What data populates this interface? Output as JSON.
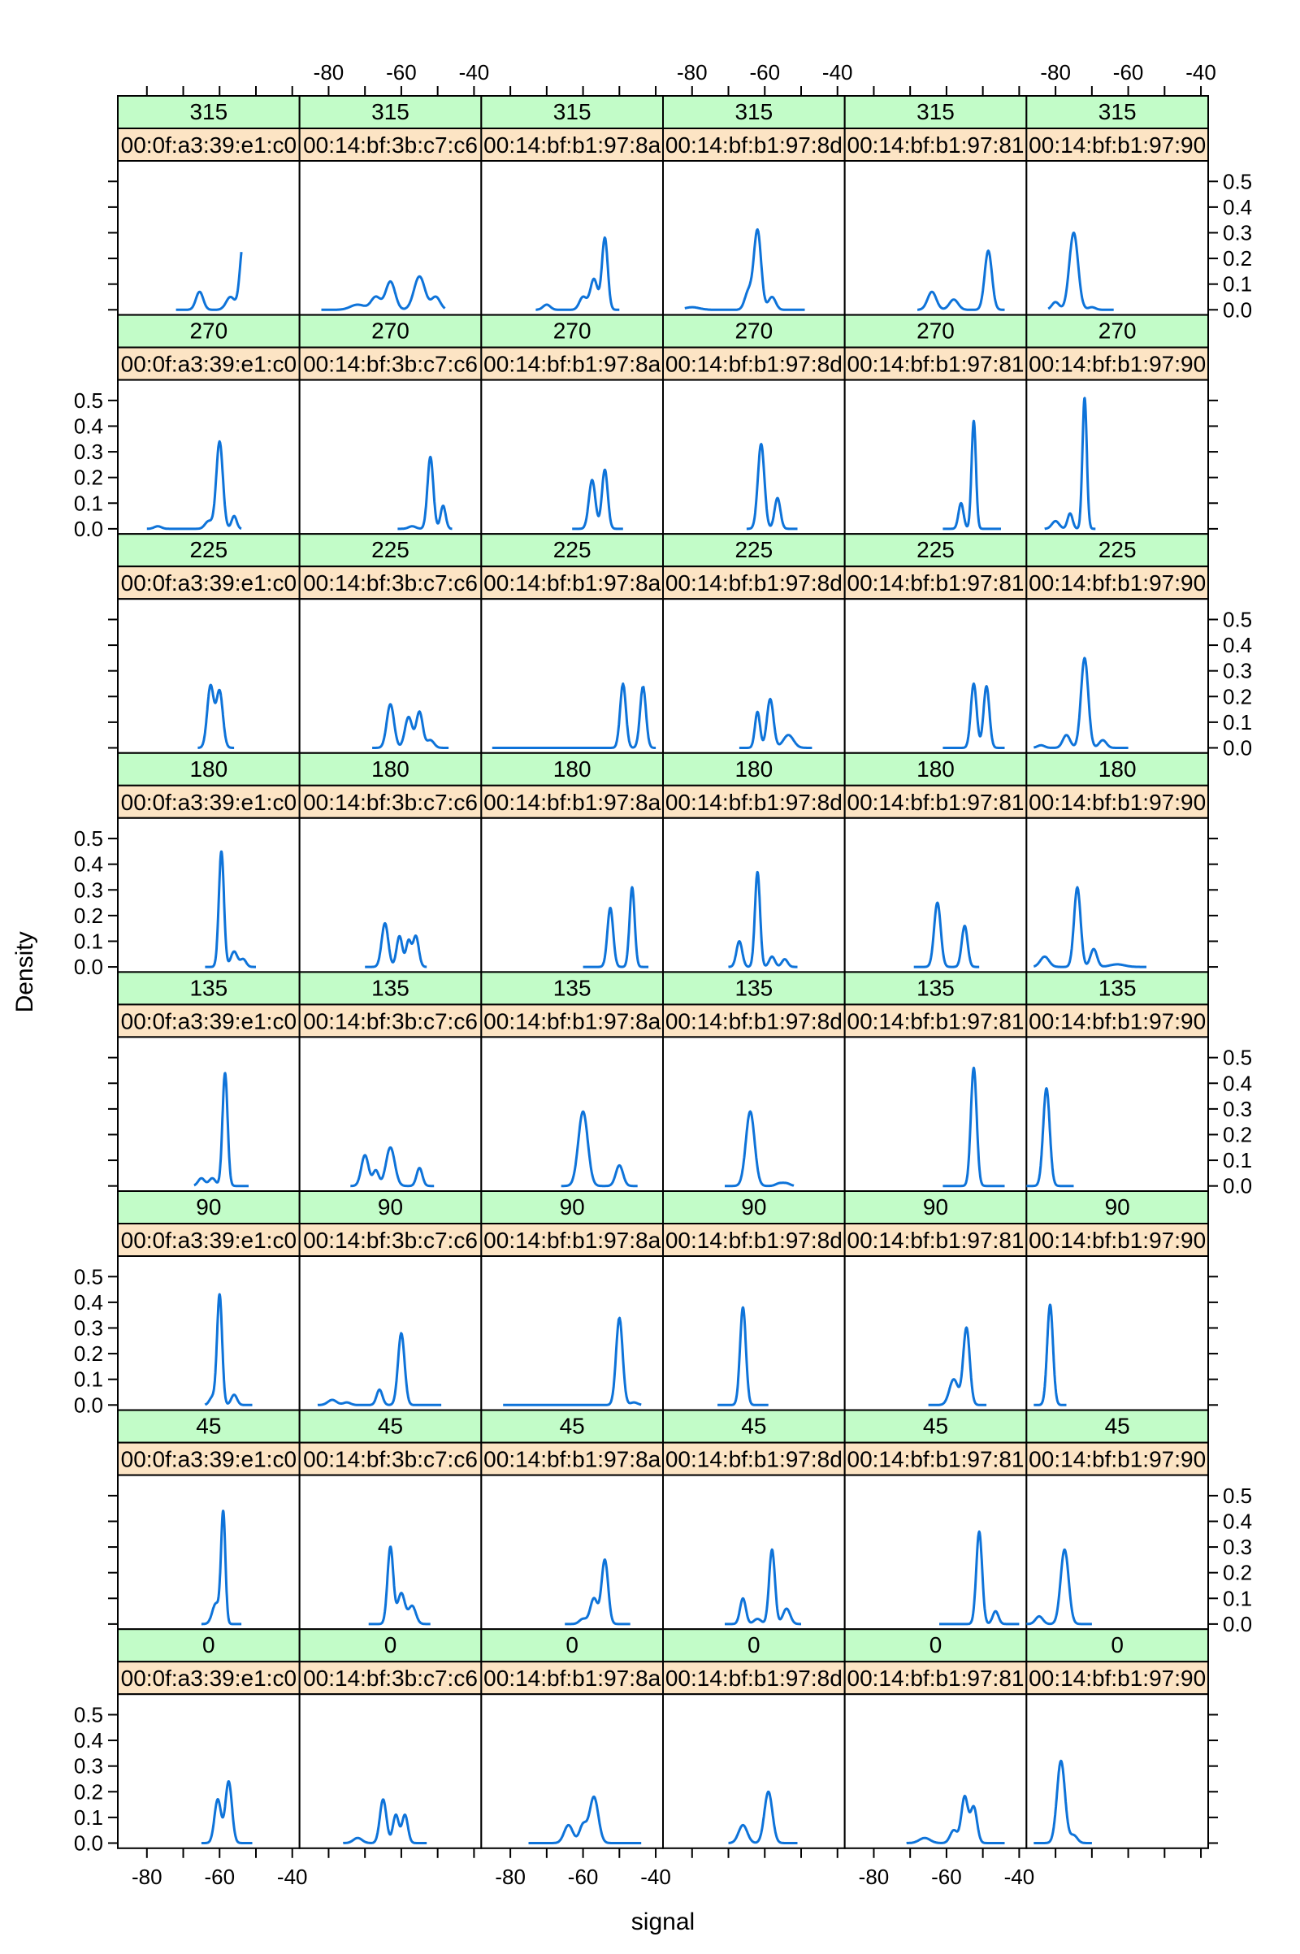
{
  "chart_data": {
    "type": "line",
    "xlabel": "signal",
    "ylabel": "Density",
    "xlim": [
      -88,
      -38
    ],
    "ylim": [
      -0.02,
      0.58
    ],
    "x_ticks": [
      -80,
      -60,
      -40
    ],
    "y_ticks": [
      0.0,
      0.1,
      0.2,
      0.3,
      0.4,
      0.5
    ],
    "y_tick_labels": [
      "0.0",
      "0.1",
      "0.2",
      "0.3",
      "0.4",
      "0.5"
    ],
    "grid": false,
    "colors": {
      "line": "#0e73d9",
      "strip_angle": "#c2fcc8",
      "strip_mac": "#fce4c4",
      "frame": "#000000"
    },
    "angles": [
      "315",
      "270",
      "225",
      "180",
      "135",
      "90",
      "45",
      "0"
    ],
    "macs": [
      "00:0f:a3:39:e1:c0",
      "00:14:bf:3b:c7:c6",
      "00:14:bf:b1:97:8a",
      "00:14:bf:b1:97:8d",
      "00:14:bf:b1:97:81",
      "00:14:bf:b1:97:90"
    ],
    "panels": [
      [
        {
          "from": -72,
          "to": -54,
          "peaks": [
            [
              -65.5,
              0.07,
              1.0
            ],
            [
              -57,
              0.05,
              1.2
            ],
            [
              -53.5,
              0.26,
              0.9
            ]
          ]
        },
        {
          "from": -82,
          "to": -48,
          "peaks": [
            [
              -72,
              0.02,
              2.0
            ],
            [
              -63,
              0.11,
              1.3
            ],
            [
              -55,
              0.13,
              1.5
            ],
            [
              -50.5,
              0.05,
              1.2
            ],
            [
              -67,
              0.05,
              1.3
            ]
          ]
        },
        {
          "from": -73,
          "to": -50,
          "peaks": [
            [
              -70,
              0.02,
              1.0
            ],
            [
              -57,
              0.12,
              1.0
            ],
            [
              -54,
              0.28,
              0.8
            ],
            [
              -60,
              0.05,
              1.0
            ]
          ]
        },
        {
          "from": -82,
          "to": -49,
          "peaks": [
            [
              -80,
              0.01,
              2.0
            ],
            [
              -62,
              0.31,
              1.0
            ],
            [
              -58,
              0.05,
              1.0
            ],
            [
              -64.5,
              0.07,
              1.0
            ]
          ]
        },
        {
          "from": -68,
          "to": -44,
          "peaks": [
            [
              -64,
              0.07,
              1.2
            ],
            [
              -58,
              0.04,
              1.2
            ],
            [
              -48.5,
              0.23,
              1.0
            ]
          ]
        },
        {
          "from": -82,
          "to": -64,
          "peaks": [
            [
              -80,
              0.03,
              1.0
            ],
            [
              -75,
              0.3,
              1.2
            ],
            [
              -70,
              0.01,
              1.0
            ]
          ]
        }
      ],
      [
        {
          "from": -80,
          "to": -54,
          "peaks": [
            [
              -77,
              0.01,
              1.0
            ],
            [
              -60,
              0.34,
              0.9
            ],
            [
              -56,
              0.05,
              0.7
            ],
            [
              -63,
              0.03,
              1.0
            ]
          ]
        },
        {
          "from": -61,
          "to": -46,
          "peaks": [
            [
              -57,
              0.01,
              1.0
            ],
            [
              -52,
              0.28,
              0.8
            ],
            [
              -48.5,
              0.09,
              0.7
            ]
          ]
        },
        {
          "from": -63,
          "to": -49,
          "peaks": [
            [
              -57.5,
              0.19,
              0.9
            ],
            [
              -54,
              0.23,
              0.8
            ]
          ]
        },
        {
          "from": -65,
          "to": -51,
          "peaks": [
            [
              -61,
              0.33,
              0.9
            ],
            [
              -56.5,
              0.12,
              0.8
            ]
          ]
        },
        {
          "from": -61,
          "to": -45,
          "peaks": [
            [
              -56,
              0.1,
              0.7
            ],
            [
              -52.5,
              0.42,
              0.6
            ]
          ]
        },
        {
          "from": -83,
          "to": -69,
          "peaks": [
            [
              -80,
              0.03,
              1.0
            ],
            [
              -76,
              0.06,
              0.7
            ],
            [
              -72,
              0.51,
              0.6
            ]
          ]
        }
      ],
      [
        {
          "from": -66,
          "to": -56,
          "peaks": [
            [
              -62.5,
              0.24,
              0.9
            ],
            [
              -60,
              0.22,
              0.9
            ]
          ]
        },
        {
          "from": -68,
          "to": -47,
          "peaks": [
            [
              -63,
              0.17,
              1.0
            ],
            [
              -58,
              0.12,
              1.0
            ],
            [
              -55,
              0.14,
              0.9
            ],
            [
              -52,
              0.03,
              1.0
            ]
          ]
        },
        {
          "from": -85,
          "to": -40,
          "peaks": [
            [
              -49,
              0.25,
              0.8
            ],
            [
              -43.5,
              0.24,
              0.8
            ]
          ]
        },
        {
          "from": -67,
          "to": -47,
          "peaks": [
            [
              -62,
              0.14,
              0.7
            ],
            [
              -58.5,
              0.19,
              0.9
            ],
            [
              -53.5,
              0.05,
              1.4
            ]
          ]
        },
        {
          "from": -61,
          "to": -44,
          "peaks": [
            [
              -52.5,
              0.25,
              0.8
            ],
            [
              -49,
              0.24,
              0.8
            ]
          ]
        },
        {
          "from": -86,
          "to": -60,
          "peaks": [
            [
              -84,
              0.01,
              1.0
            ],
            [
              -72,
              0.35,
              1.0
            ],
            [
              -77,
              0.05,
              1.0
            ],
            [
              -67,
              0.03,
              1.0
            ]
          ]
        }
      ],
      [
        {
          "from": -64,
          "to": -50,
          "peaks": [
            [
              -59.5,
              0.45,
              0.7
            ],
            [
              -56,
              0.06,
              0.9
            ],
            [
              -53.5,
              0.03,
              0.8
            ]
          ]
        },
        {
          "from": -70,
          "to": -53,
          "peaks": [
            [
              -64.5,
              0.17,
              0.9
            ],
            [
              -60.5,
              0.12,
              0.8
            ],
            [
              -58,
              0.1,
              0.7
            ],
            [
              -56,
              0.12,
              0.8
            ]
          ]
        },
        {
          "from": -60,
          "to": -42,
          "peaks": [
            [
              -52.5,
              0.23,
              0.8
            ],
            [
              -46.5,
              0.31,
              0.7
            ]
          ]
        },
        {
          "from": -70,
          "to": -51,
          "peaks": [
            [
              -67,
              0.1,
              0.8
            ],
            [
              -62,
              0.37,
              0.7
            ],
            [
              -58,
              0.04,
              0.8
            ],
            [
              -54.5,
              0.03,
              0.8
            ]
          ]
        },
        {
          "from": -69,
          "to": -51,
          "peaks": [
            [
              -62.5,
              0.25,
              0.9
            ],
            [
              -55,
              0.16,
              0.8
            ]
          ]
        },
        {
          "from": -86,
          "to": -55,
          "peaks": [
            [
              -83,
              0.04,
              1.2
            ],
            [
              -74,
              0.31,
              0.9
            ],
            [
              -69.5,
              0.07,
              0.9
            ],
            [
              -63,
              0.01,
              2.0
            ]
          ]
        }
      ],
      [
        {
          "from": -67,
          "to": -52,
          "peaks": [
            [
              -65,
              0.03,
              0.9
            ],
            [
              -62,
              0.03,
              0.9
            ],
            [
              -58.5,
              0.44,
              0.7
            ]
          ]
        },
        {
          "from": -74,
          "to": -51,
          "peaks": [
            [
              -70,
              0.12,
              1.0
            ],
            [
              -63,
              0.15,
              1.2
            ],
            [
              -55,
              0.07,
              0.8
            ],
            [
              -67,
              0.06,
              0.8
            ]
          ]
        },
        {
          "from": -66,
          "to": -45,
          "peaks": [
            [
              -60,
              0.29,
              1.3
            ],
            [
              -50,
              0.08,
              1.0
            ]
          ]
        },
        {
          "from": -71,
          "to": -52,
          "peaks": [
            [
              -64,
              0.29,
              1.2
            ],
            [
              -56,
              0.01,
              1.0
            ],
            [
              -54,
              0.01,
              1.0
            ]
          ]
        },
        {
          "from": -61,
          "to": -44,
          "peaks": [
            [
              -52.5,
              0.46,
              0.8
            ]
          ]
        },
        {
          "from": -88,
          "to": -75,
          "peaks": [
            [
              -82.5,
              0.38,
              0.9
            ]
          ]
        }
      ],
      [
        {
          "from": -64,
          "to": -51,
          "peaks": [
            [
              -60,
              0.43,
              0.7
            ],
            [
              -62,
              0.03,
              0.8
            ],
            [
              -56,
              0.04,
              0.8
            ]
          ]
        },
        {
          "from": -83,
          "to": -49,
          "peaks": [
            [
              -79,
              0.02,
              1.2
            ],
            [
              -75,
              0.01,
              1.0
            ],
            [
              -66,
              0.06,
              0.8
            ],
            [
              -60,
              0.28,
              0.9
            ]
          ]
        },
        {
          "from": -82,
          "to": -44,
          "peaks": [
            [
              -50,
              0.34,
              0.9
            ],
            [
              -46,
              0.01,
              1.0
            ]
          ]
        },
        {
          "from": -73,
          "to": -59,
          "peaks": [
            [
              -66,
              0.38,
              0.8
            ]
          ]
        },
        {
          "from": -65,
          "to": -49,
          "peaks": [
            [
              -54.5,
              0.3,
              0.9
            ],
            [
              -58,
              0.1,
              1.2
            ]
          ]
        },
        {
          "from": -86,
          "to": -77,
          "peaks": [
            [
              -81.5,
              0.39,
              0.8
            ]
          ]
        }
      ],
      [
        {
          "from": -65,
          "to": -54,
          "peaks": [
            [
              -61,
              0.08,
              1.0
            ],
            [
              -59,
              0.43,
              0.6
            ]
          ]
        },
        {
          "from": -69,
          "to": -52,
          "peaks": [
            [
              -63,
              0.3,
              0.8
            ],
            [
              -60,
              0.12,
              1.0
            ],
            [
              -57,
              0.07,
              1.0
            ]
          ]
        },
        {
          "from": -65,
          "to": -47,
          "peaks": [
            [
              -57,
              0.1,
              1.0
            ],
            [
              -54,
              0.25,
              0.9
            ],
            [
              -60,
              0.02,
              1.0
            ]
          ]
        },
        {
          "from": -71,
          "to": -50,
          "peaks": [
            [
              -66,
              0.1,
              0.8
            ],
            [
              -58,
              0.29,
              0.8
            ],
            [
              -54,
              0.06,
              1.0
            ],
            [
              -62,
              0.02,
              1.0
            ]
          ]
        },
        {
          "from": -62,
          "to": -40,
          "peaks": [
            [
              -51,
              0.36,
              0.8
            ],
            [
              -46.5,
              0.05,
              0.8
            ]
          ]
        },
        {
          "from": -88,
          "to": -70,
          "peaks": [
            [
              -84.5,
              0.03,
              1.0
            ],
            [
              -77.5,
              0.29,
              1.1
            ]
          ]
        }
      ],
      [
        {
          "from": -65,
          "to": -51,
          "peaks": [
            [
              -60.5,
              0.17,
              0.9
            ],
            [
              -57.5,
              0.24,
              0.9
            ]
          ]
        },
        {
          "from": -76,
          "to": -53,
          "peaks": [
            [
              -72,
              0.02,
              1.2
            ],
            [
              -65,
              0.17,
              0.9
            ],
            [
              -61.5,
              0.11,
              0.8
            ],
            [
              -59,
              0.11,
              0.8
            ]
          ]
        },
        {
          "from": -75,
          "to": -44,
          "peaks": [
            [
              -64,
              0.07,
              1.2
            ],
            [
              -57,
              0.18,
              1.2
            ],
            [
              -60,
              0.07,
              1.0
            ]
          ]
        },
        {
          "from": -70,
          "to": -51,
          "peaks": [
            [
              -66,
              0.07,
              1.2
            ],
            [
              -59,
              0.2,
              1.1
            ]
          ]
        },
        {
          "from": -71,
          "to": -44,
          "peaks": [
            [
              -66,
              0.02,
              1.5
            ],
            [
              -55,
              0.18,
              0.9
            ],
            [
              -52.5,
              0.14,
              0.9
            ],
            [
              -58,
              0.05,
              1.0
            ]
          ]
        },
        {
          "from": -86,
          "to": -70,
          "peaks": [
            [
              -78.5,
              0.32,
              1.1
            ],
            [
              -75,
              0.03,
              1.0
            ]
          ]
        }
      ]
    ]
  }
}
